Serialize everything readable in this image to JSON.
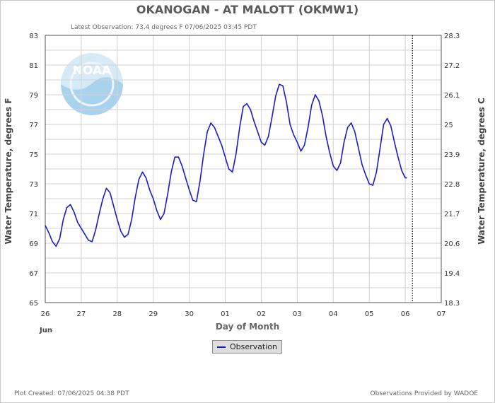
{
  "chart_data": {
    "type": "line",
    "title": "OKANOGAN - AT MALOTT  (OKMW1)",
    "subtitle": "Latest Observation: 73.4 degrees F 07/06/2025 03:45 PDT",
    "xlabel": "Day of Month",
    "x_month_label": "Jun",
    "ylabel": "Water Temperature, degrees F",
    "ylabel_right": "Water Temperature, degrees C",
    "x_ticks": [
      "26",
      "27",
      "28",
      "29",
      "30",
      "01",
      "02",
      "03",
      "04",
      "05",
      "06",
      "07"
    ],
    "xlim": [
      0,
      11
    ],
    "ylim": [
      65,
      83
    ],
    "y_ticks": [
      65,
      67,
      69,
      71,
      73,
      75,
      77,
      79,
      81,
      83
    ],
    "y_ticks_right": [
      "18.3",
      "19.4",
      "20.6",
      "21.7",
      "22.8",
      "23.9",
      "25",
      "26.1",
      "27.2",
      "28.3"
    ],
    "grid": true,
    "current_time_x": 10.2,
    "legend_placement": "bottom-center",
    "series": [
      {
        "name": "Observation",
        "color": "#1a1acc",
        "points": [
          [
            0.0,
            70.2
          ],
          [
            0.1,
            69.7
          ],
          [
            0.2,
            69.1
          ],
          [
            0.3,
            68.8
          ],
          [
            0.4,
            69.3
          ],
          [
            0.5,
            70.6
          ],
          [
            0.6,
            71.4
          ],
          [
            0.7,
            71.6
          ],
          [
            0.8,
            71.1
          ],
          [
            0.9,
            70.4
          ],
          [
            1.0,
            70.0
          ],
          [
            1.1,
            69.6
          ],
          [
            1.2,
            69.2
          ],
          [
            1.3,
            69.1
          ],
          [
            1.4,
            69.9
          ],
          [
            1.5,
            71.0
          ],
          [
            1.6,
            72.0
          ],
          [
            1.7,
            72.7
          ],
          [
            1.8,
            72.4
          ],
          [
            1.9,
            71.5
          ],
          [
            2.0,
            70.6
          ],
          [
            2.1,
            69.8
          ],
          [
            2.2,
            69.4
          ],
          [
            2.3,
            69.6
          ],
          [
            2.4,
            70.6
          ],
          [
            2.5,
            72.1
          ],
          [
            2.6,
            73.3
          ],
          [
            2.7,
            73.8
          ],
          [
            2.8,
            73.4
          ],
          [
            2.9,
            72.6
          ],
          [
            3.0,
            72.0
          ],
          [
            3.1,
            71.2
          ],
          [
            3.2,
            70.6
          ],
          [
            3.3,
            71.0
          ],
          [
            3.4,
            72.3
          ],
          [
            3.5,
            73.8
          ],
          [
            3.6,
            74.8
          ],
          [
            3.7,
            74.8
          ],
          [
            3.8,
            74.2
          ],
          [
            3.9,
            73.4
          ],
          [
            4.0,
            72.6
          ],
          [
            4.1,
            71.9
          ],
          [
            4.2,
            71.8
          ],
          [
            4.3,
            73.2
          ],
          [
            4.4,
            75.0
          ],
          [
            4.5,
            76.5
          ],
          [
            4.6,
            77.1
          ],
          [
            4.7,
            76.8
          ],
          [
            4.8,
            76.2
          ],
          [
            4.9,
            75.6
          ],
          [
            5.0,
            74.8
          ],
          [
            5.1,
            74.0
          ],
          [
            5.2,
            73.8
          ],
          [
            5.3,
            75.0
          ],
          [
            5.4,
            76.8
          ],
          [
            5.5,
            78.2
          ],
          [
            5.6,
            78.4
          ],
          [
            5.7,
            78.0
          ],
          [
            5.8,
            77.2
          ],
          [
            5.9,
            76.5
          ],
          [
            6.0,
            75.8
          ],
          [
            6.1,
            75.6
          ],
          [
            6.2,
            76.2
          ],
          [
            6.3,
            77.5
          ],
          [
            6.4,
            78.9
          ],
          [
            6.5,
            79.7
          ],
          [
            6.6,
            79.6
          ],
          [
            6.7,
            78.5
          ],
          [
            6.8,
            77.0
          ],
          [
            6.9,
            76.3
          ],
          [
            7.0,
            75.8
          ],
          [
            7.1,
            75.2
          ],
          [
            7.2,
            75.6
          ],
          [
            7.3,
            76.8
          ],
          [
            7.4,
            78.3
          ],
          [
            7.5,
            79.0
          ],
          [
            7.6,
            78.6
          ],
          [
            7.7,
            77.6
          ],
          [
            7.8,
            76.2
          ],
          [
            7.9,
            75.1
          ],
          [
            8.0,
            74.2
          ],
          [
            8.1,
            73.9
          ],
          [
            8.2,
            74.4
          ],
          [
            8.3,
            75.8
          ],
          [
            8.4,
            76.8
          ],
          [
            8.5,
            77.1
          ],
          [
            8.6,
            76.5
          ],
          [
            8.7,
            75.4
          ],
          [
            8.8,
            74.3
          ],
          [
            8.9,
            73.6
          ],
          [
            9.0,
            73.0
          ],
          [
            9.1,
            72.9
          ],
          [
            9.2,
            73.8
          ],
          [
            9.3,
            75.4
          ],
          [
            9.4,
            77.0
          ],
          [
            9.5,
            77.4
          ],
          [
            9.6,
            76.9
          ],
          [
            9.7,
            75.8
          ],
          [
            9.8,
            74.8
          ],
          [
            9.9,
            73.9
          ],
          [
            10.0,
            73.4
          ],
          [
            10.05,
            73.4
          ]
        ]
      }
    ]
  },
  "footer": {
    "created": "Plot Created: 07/06/2025 04:38 PDT",
    "provided": "Observations Provided by WADOE"
  },
  "logo": {
    "text": "NOAA"
  }
}
